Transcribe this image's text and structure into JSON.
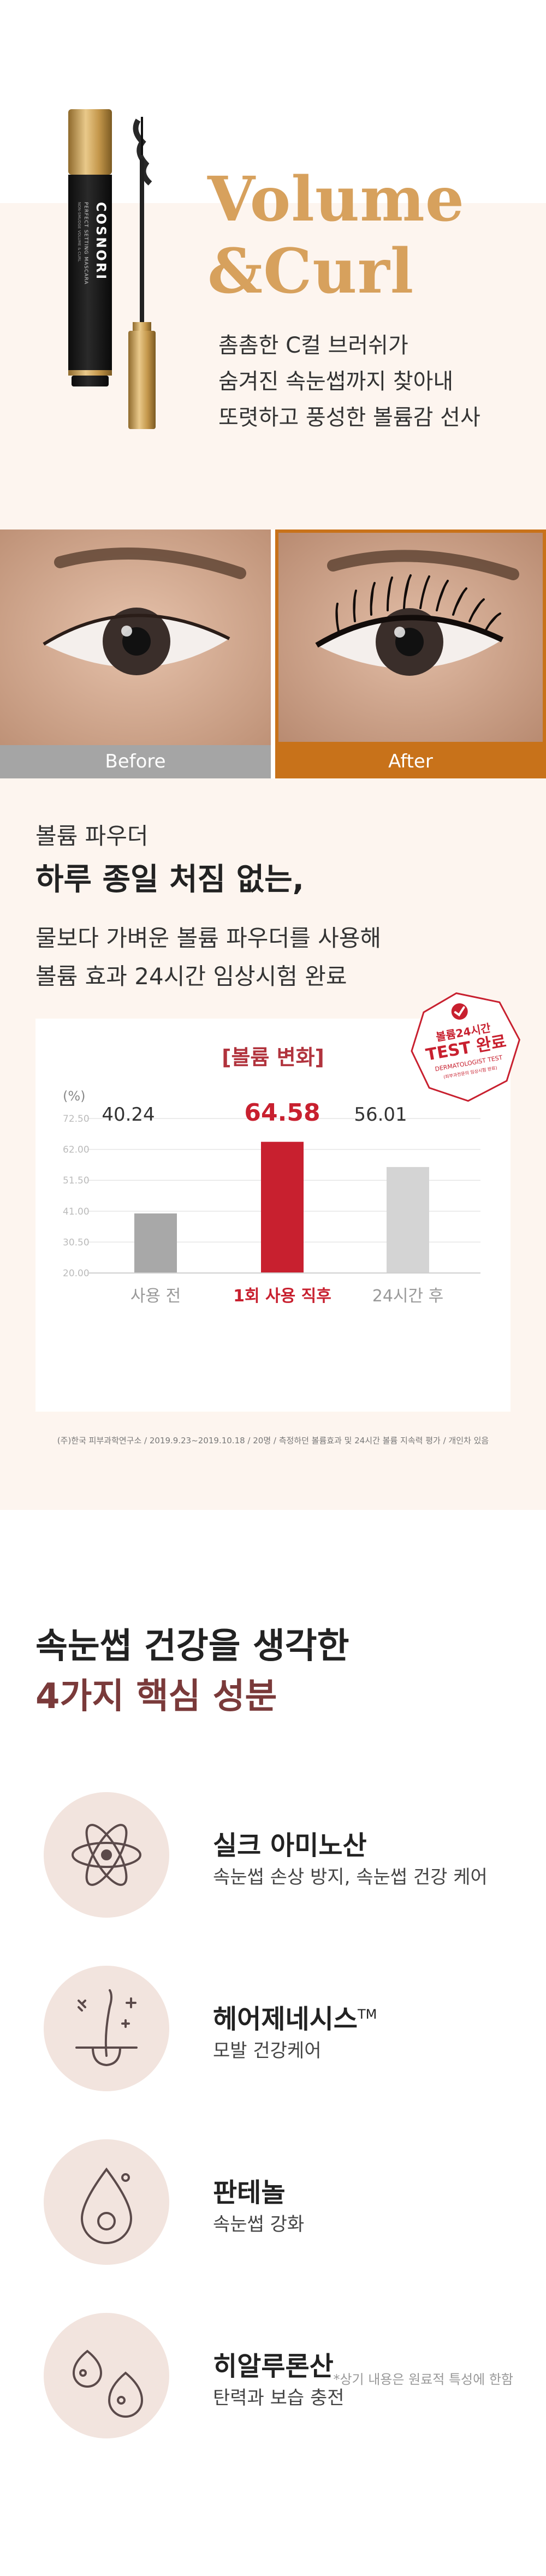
{
  "hero": {
    "title_line1": "Volume",
    "title_line2": "&Curl",
    "desc": [
      "촘촘한 C컬 브러쉬가",
      "숨겨진 속눈썹까지 찾아내",
      "또렷하고 풍성한 볼륨감 선사"
    ],
    "product_brand": "COSNORI",
    "product_name": "PERFECT SETTING MASCARA",
    "product_sub": "NON-SMUDGE VOLUME & CURL",
    "accent_color": "#d7a15d"
  },
  "before_after": {
    "before_label": "Before",
    "after_label": "After",
    "after_color": "#c8721a",
    "before_color": "#a5a5a5"
  },
  "volume": {
    "subtitle": "볼륨 파우더",
    "headline": "하루 종일 처짐 없는,",
    "desc": [
      "물보다 가벼운 볼륨 파우더를 사용해",
      "볼륨  효과 24시간 임상시험 완료"
    ],
    "badge_line1": "볼륨24시간",
    "badge_line2": "TEST 완료",
    "badge_line3": "DERMATOLOGIST TEST",
    "badge_line4": "(피부과전문의 임상시험 완료)",
    "footnote": "(주)한국 피부과학연구소 / 2019.9.23~2019.10.18 / 20명 / 측정하던 볼륨효과 및 24시간 볼륨 지속력 평가 / 개인차 있음"
  },
  "chart_data": {
    "type": "bar",
    "title": "[볼륨 변화]",
    "ylabel": "(%)",
    "categories": [
      "사용 전",
      "1회 사용 직후",
      "24시간 후"
    ],
    "values": [
      40.24,
      64.58,
      56.01
    ],
    "value_labels": [
      "40.24",
      "64.58",
      "56.01"
    ],
    "yticks": [
      "72.50",
      "62.00",
      "51.50",
      "41.00",
      "30.50",
      "20.00"
    ],
    "ylim": [
      20,
      72.5
    ],
    "bar_colors": [
      "#a8a8a8",
      "#c8202f",
      "#d4d4d4"
    ],
    "highlight_color": "#c8202f",
    "grid": true
  },
  "ingredients": {
    "headline1": "속눈썹 건강을 생각한",
    "headline2": "4가지 핵심 성분",
    "items": [
      {
        "name": "실크 아미노산",
        "desc": "속눈썹 손상 방지, 속눈썹 건강 케어",
        "icon": "atom-icon"
      },
      {
        "name": "헤어제네시스",
        "tm": "TM",
        "desc": "모발 건강케어",
        "icon": "hair-follicle-icon"
      },
      {
        "name": "판테놀",
        "desc": "속눈썹 강화",
        "icon": "droplet-icon"
      },
      {
        "name": "히알루론산",
        "desc": "탄력과 보습 충전",
        "icon": "molecule-drops-icon"
      }
    ],
    "footnote": "*상기 내용은 원료적 특성에 한함"
  }
}
